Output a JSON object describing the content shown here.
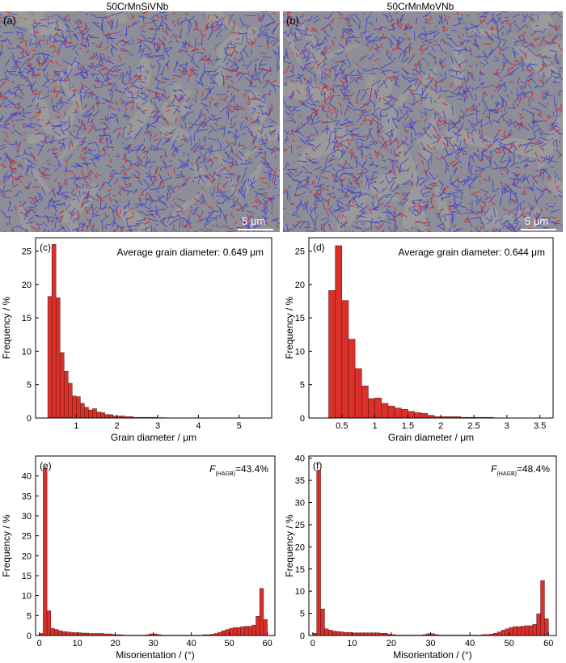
{
  "columns": [
    {
      "title": "50CrMnSiVNb"
    },
    {
      "title": "50CrMnMoVNb"
    }
  ],
  "micrographs": [
    {
      "panel": "(a)",
      "scale_bar": "5 μm",
      "seed": 11
    },
    {
      "panel": "(b)",
      "scale_bar": "5 μm",
      "seed": 29
    }
  ],
  "colors": {
    "bar_fill": "#d9302a",
    "bar_stroke": "#5a1410",
    "hagb": "#3a3ad0",
    "lagb": "#d8261c",
    "grain": "#9b9b9b"
  },
  "chart_data": [
    {
      "panel": "(c)",
      "type": "bar",
      "annotation": "Average grain diameter: 0.649 μm",
      "xlabel": "Grain diameter / μm",
      "ylabel": "Frequency / %",
      "xlim": [
        0,
        5.8
      ],
      "ylim": [
        0,
        27
      ],
      "xticks": [
        1,
        2,
        3,
        4,
        5
      ],
      "yticks": [
        0,
        5,
        10,
        15,
        20,
        25
      ],
      "bin_start": 0.3,
      "bin_width": 0.1,
      "values": [
        18.2,
        26.0,
        18.0,
        9.8,
        7.0,
        5.2,
        3.3,
        3.2,
        2.2,
        1.6,
        1.2,
        1.4,
        0.9,
        0.8,
        0.5,
        0.5,
        0.3,
        0.3,
        0.3,
        0.2,
        0.2,
        0.1,
        0.1,
        0.1,
        0.1,
        0.1,
        0.1,
        0.05,
        0.05
      ]
    },
    {
      "panel": "(d)",
      "type": "bar",
      "annotation": "Average grain diameter: 0.644 μm",
      "xlabel": "Grain diameter / μm",
      "ylabel": "Frequency / %",
      "xlim": [
        0,
        3.7
      ],
      "ylim": [
        0,
        27
      ],
      "xticks": [
        0.5,
        1.0,
        1.5,
        2.0,
        2.5,
        3.0,
        3.5
      ],
      "yticks": [
        0,
        5,
        10,
        15,
        20,
        25
      ],
      "bin_start": 0.3,
      "bin_width": 0.1,
      "values": [
        19.1,
        25.8,
        17.6,
        11.8,
        7.4,
        4.8,
        2.9,
        3.0,
        2.2,
        1.8,
        1.5,
        1.3,
        1.0,
        0.8,
        0.7,
        0.4,
        0.2,
        0.2,
        0.2,
        0.2,
        0.1,
        0.1,
        0.1,
        0.1,
        0.1
      ]
    },
    {
      "panel": "(e)",
      "type": "bar",
      "annotation_main": "F",
      "annotation_sub": "(HAGB)",
      "annotation_value": "=43.4%",
      "xlabel": "Misorientation / (°)",
      "ylabel": "Frequency / %",
      "xlim": [
        -1,
        62
      ],
      "ylim": [
        0,
        45
      ],
      "xticks": [
        0,
        10,
        20,
        30,
        40,
        50,
        60
      ],
      "yticks": [
        0,
        5,
        10,
        15,
        20,
        25,
        30,
        35,
        40
      ],
      "bin_start": 0,
      "bin_width": 1,
      "values": [
        0.5,
        42.0,
        6.2,
        1.8,
        1.5,
        1.2,
        1.0,
        0.9,
        0.8,
        0.7,
        0.7,
        0.6,
        0.6,
        0.5,
        0.5,
        0.5,
        0.5,
        0.4,
        0.4,
        0.3,
        0.2,
        0.2,
        0.1,
        0.1,
        0.1,
        0.1,
        0.1,
        0.1,
        0.2,
        0.4,
        0.4,
        0.2,
        0.1,
        0.1,
        0.1,
        0.1,
        0.1,
        0.1,
        0.1,
        0.1,
        0.1,
        0.1,
        0.1,
        0.2,
        0.2,
        0.3,
        0.5,
        0.8,
        1.2,
        1.5,
        1.8,
        2.0,
        2.0,
        2.2,
        2.3,
        2.3,
        2.6,
        4.8,
        11.8,
        4.0
      ]
    },
    {
      "panel": "(f)",
      "type": "bar",
      "annotation_main": "F",
      "annotation_sub": "(HAGB)",
      "annotation_value": "=48.4%",
      "xlabel": "Misorientation / (°)",
      "ylabel": "Frequency / %",
      "xlim": [
        -1,
        62
      ],
      "ylim": [
        0,
        40.5
      ],
      "xticks": [
        0,
        10,
        20,
        30,
        40,
        50,
        60
      ],
      "yticks": [
        0,
        5,
        10,
        15,
        20,
        25,
        30,
        35,
        40
      ],
      "bin_start": 0,
      "bin_width": 1,
      "values": [
        0.5,
        37.3,
        6.0,
        1.5,
        1.2,
        1.0,
        0.9,
        0.8,
        0.7,
        0.7,
        0.6,
        0.6,
        0.6,
        0.6,
        0.6,
        0.6,
        0.6,
        0.5,
        0.5,
        0.3,
        0.2,
        0.1,
        0.1,
        0.1,
        0.1,
        0.1,
        0.1,
        0.1,
        0.2,
        0.4,
        0.4,
        0.2,
        0.1,
        0.1,
        0.1,
        0.1,
        0.1,
        0.1,
        0.1,
        0.1,
        0.1,
        0.1,
        0.1,
        0.2,
        0.2,
        0.3,
        0.5,
        0.8,
        1.2,
        1.5,
        1.8,
        2.0,
        2.0,
        2.1,
        2.2,
        2.2,
        2.5,
        4.9,
        12.4,
        3.8
      ]
    }
  ]
}
